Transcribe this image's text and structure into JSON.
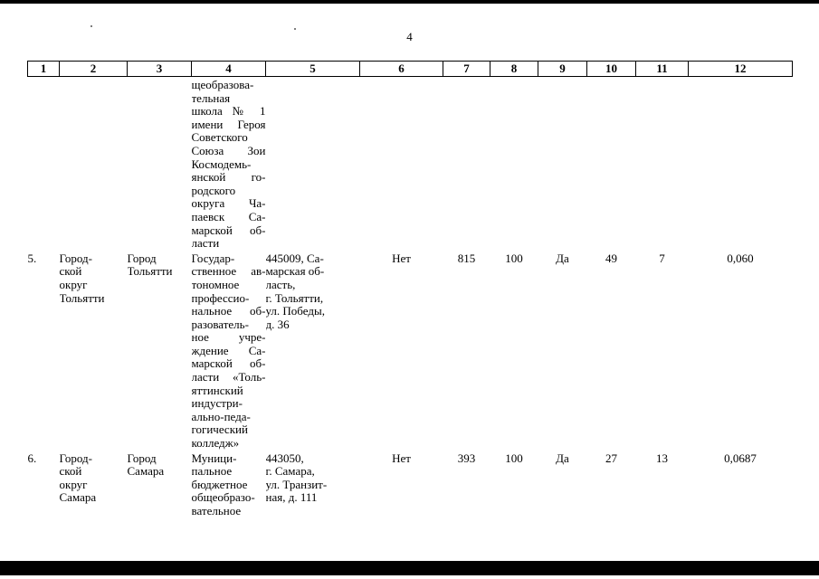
{
  "page": {
    "number": "4"
  },
  "artifacts": {
    "bar_color": "#000000"
  },
  "table": {
    "headers": [
      "1",
      "2",
      "3",
      "4",
      "5",
      "6",
      "7",
      "8",
      "9",
      "10",
      "11",
      "12"
    ],
    "rows": [
      {
        "cells": [
          "",
          "",
          "",
          "щеобразова-\nтельная\nшкола № 1\nимени Героя\nСоветского\nСоюза Зои\nКосмодемь-\nянской го-\nродского\nокруга Ча-\nпаевск Са-\nмарской об-\nласти",
          "",
          "",
          "",
          "",
          "",
          "",
          "",
          ""
        ]
      },
      {
        "cells": [
          "5.",
          "Город-\nской\nокруг\nТольятти",
          "Город\nТольятти",
          "Государ-\nственное ав-\nтономное\nпрофессио-\nнальное об-\nразователь-\nное учре-\nждение Са-\nмарской об-\nласти «Толь-\nяттинский\nиндустри-\nально-педа-\nгогический\nколледж»",
          "445009, Са-\nмарская об-\nласть,\nг. Тольятти,\nул. Победы,\nд. 36",
          "Нет",
          "815",
          "100",
          "Да",
          "49",
          "7",
          "0,060"
        ]
      },
      {
        "cells": [
          "6.",
          "Город-\nской\nокруг\nСамара",
          "Город\nСамара",
          "Муници-\nпальное\nбюджетное\nобщеобразо-\nвательное",
          "443050,\nг. Самара,\nул. Транзит-\nная, д. 111",
          "Нет",
          "393",
          "100",
          "Да",
          "27",
          "13",
          "0,0687"
        ]
      }
    ]
  }
}
